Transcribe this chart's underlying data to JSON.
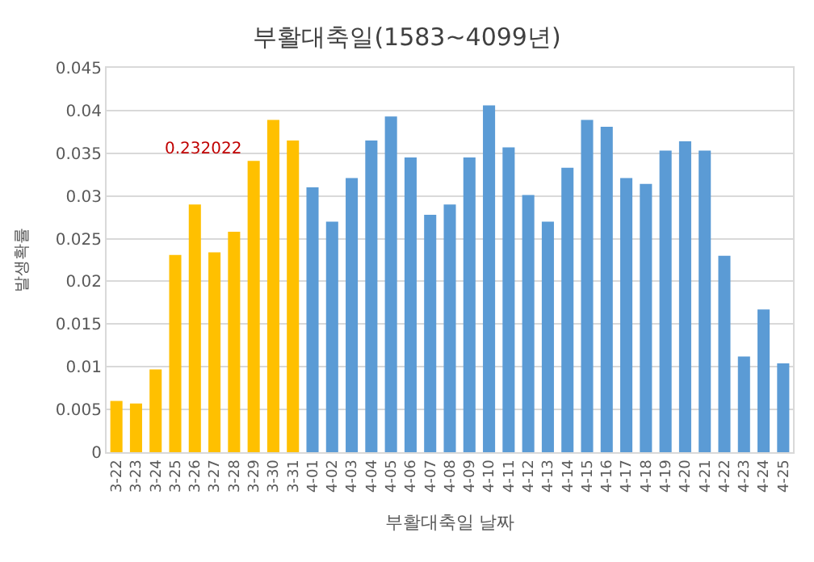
{
  "chart_data": {
    "type": "bar",
    "title": "부활대축일(1583~4099년)",
    "xlabel": "부활대축일 날짜",
    "ylabel": "발생확률",
    "categories": [
      "3-22",
      "3-23",
      "3-24",
      "3-25",
      "3-26",
      "3-27",
      "3-28",
      "3-29",
      "3-30",
      "3-31",
      "4-01",
      "4-02",
      "4-03",
      "4-04",
      "4-05",
      "4-06",
      "4-07",
      "4-08",
      "4-09",
      "4-10",
      "4-11",
      "4-12",
      "4-13",
      "4-14",
      "4-15",
      "4-16",
      "4-17",
      "4-18",
      "4-19",
      "4-20",
      "4-21",
      "4-22",
      "4-23",
      "4-24",
      "4-25"
    ],
    "values": [
      0.006,
      0.0057,
      0.0097,
      0.0231,
      0.029,
      0.0234,
      0.0258,
      0.0341,
      0.0389,
      0.0365,
      0.031,
      0.027,
      0.0321,
      0.0365,
      0.0393,
      0.0345,
      0.0278,
      0.029,
      0.0345,
      0.0406,
      0.0357,
      0.0301,
      0.027,
      0.0333,
      0.0389,
      0.0381,
      0.0321,
      0.0314,
      0.0353,
      0.0364,
      0.0353,
      0.023,
      0.0112,
      0.0167,
      0.0104
    ],
    "colors": [
      "#ffc000",
      "#ffc000",
      "#ffc000",
      "#ffc000",
      "#ffc000",
      "#ffc000",
      "#ffc000",
      "#ffc000",
      "#ffc000",
      "#ffc000",
      "#5b9bd5",
      "#5b9bd5",
      "#5b9bd5",
      "#5b9bd5",
      "#5b9bd5",
      "#5b9bd5",
      "#5b9bd5",
      "#5b9bd5",
      "#5b9bd5",
      "#5b9bd5",
      "#5b9bd5",
      "#5b9bd5",
      "#5b9bd5",
      "#5b9bd5",
      "#5b9bd5",
      "#5b9bd5",
      "#5b9bd5",
      "#5b9bd5",
      "#5b9bd5",
      "#5b9bd5",
      "#5b9bd5",
      "#5b9bd5",
      "#5b9bd5",
      "#5b9bd5",
      "#5b9bd5"
    ],
    "ylim": [
      0,
      0.045
    ],
    "yticks": [
      0,
      0.005,
      0.01,
      0.015,
      0.02,
      0.025,
      0.03,
      0.035,
      0.04,
      0.045
    ],
    "grid": "y",
    "annotations": [
      "0.232022"
    ]
  }
}
